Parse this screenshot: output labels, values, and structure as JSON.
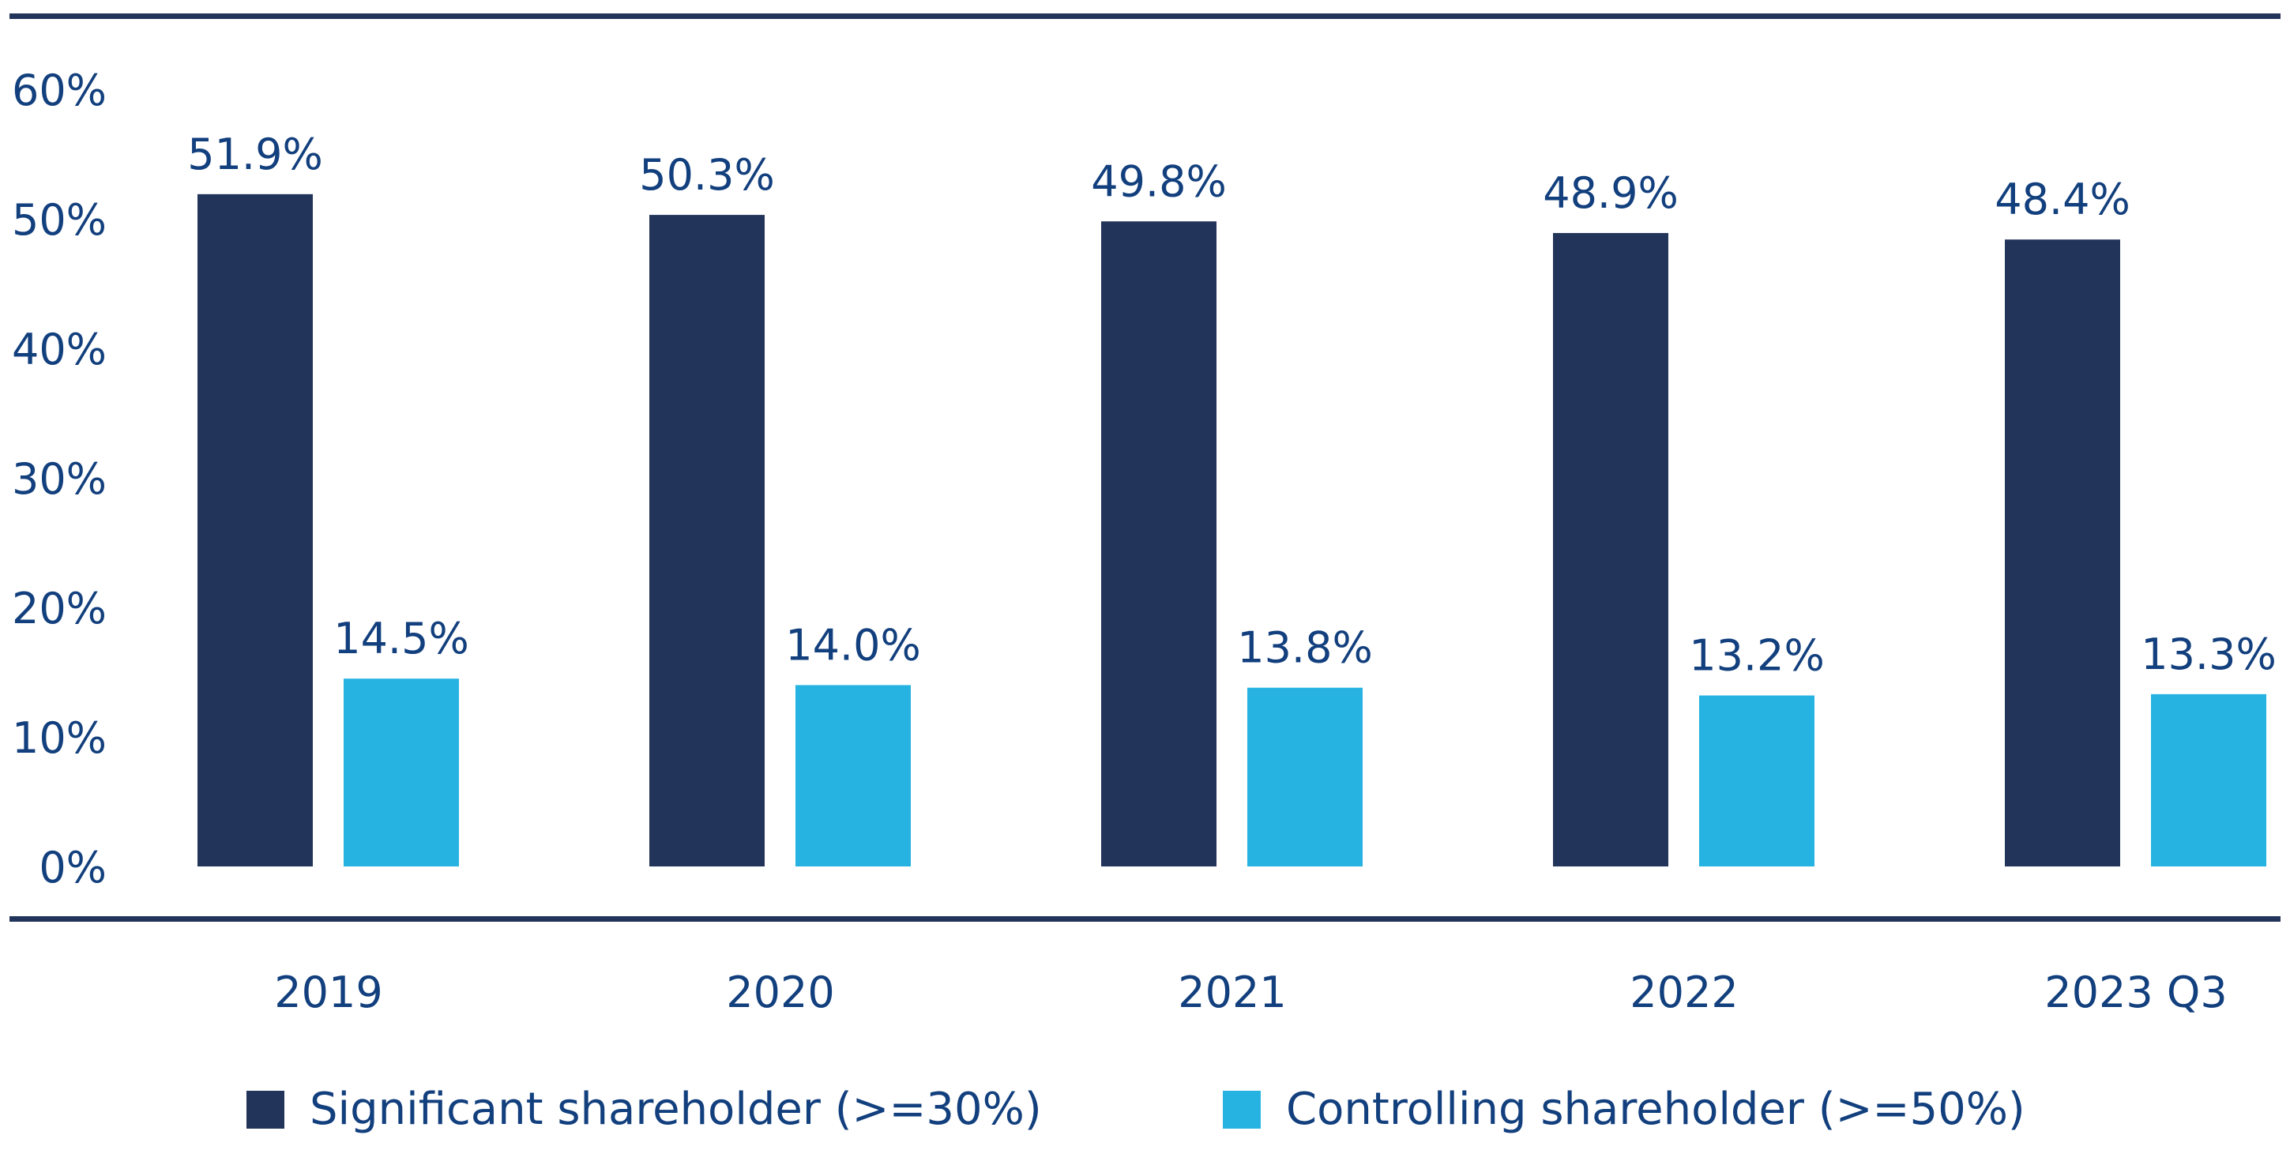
{
  "chart_data": {
    "type": "bar",
    "categories": [
      "2019",
      "2020",
      "2021",
      "2022",
      "2023 Q3"
    ],
    "series": [
      {
        "name": "Significant shareholder (>=30%)",
        "values": [
          51.9,
          50.3,
          49.8,
          48.9,
          48.4
        ],
        "labels": [
          "51.9%",
          "50.3%",
          "49.8%",
          "48.9%",
          "48.4%"
        ],
        "color": "#22345a"
      },
      {
        "name": "Controlling shareholder (>=50%)",
        "values": [
          14.5,
          14.0,
          13.8,
          13.2,
          13.3
        ],
        "labels": [
          "14.5%",
          "14.0%",
          "13.8%",
          "13.2%",
          "13.3%"
        ],
        "color": "#27b3e2"
      }
    ],
    "yticks": [
      "0%",
      "10%",
      "20%",
      "30%",
      "40%",
      "50%",
      "60%"
    ],
    "ylim": [
      0,
      60
    ],
    "grid": false,
    "legend_position": "bottom",
    "text_color": "#123f7d",
    "rule_color": "#22345a"
  }
}
